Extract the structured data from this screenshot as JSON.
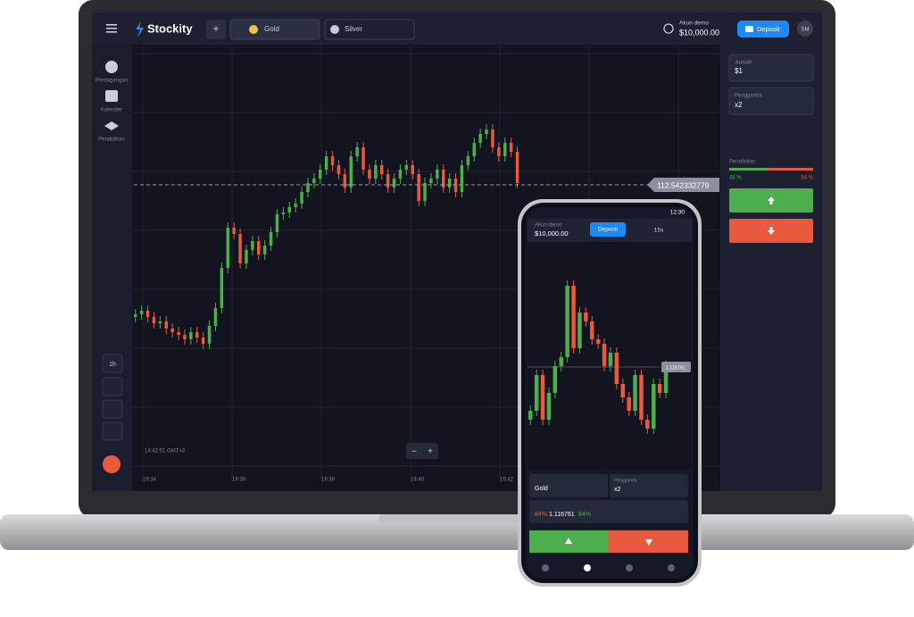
{
  "header": {
    "logo": "Stockity",
    "tabs": [
      "Gold",
      "Silver"
    ],
    "account_label": "Akun demo",
    "balance": "$10,000.00",
    "deposit": "Deposit",
    "avatar": "SM"
  },
  "sidebar": [
    "Perdagangan",
    "Kalender",
    "Pendidikan"
  ],
  "tools": {
    "timeframe": "1h"
  },
  "chart": {
    "current_price": "112.542332779",
    "time": "14:42:51 GMT+3",
    "xticks": [
      "19:34",
      "19:36",
      "19:38",
      "19:40",
      "19:42"
    ]
  },
  "panel": {
    "amount_label": "Jumlah",
    "amount": "$1",
    "multiplier_label": "Pengganda",
    "multiplier": "x2",
    "sentiment_label": "Pendikikan",
    "sentiment_up": "46 %",
    "sentiment_down": "54 %"
  },
  "phone": {
    "clock": "12:30",
    "account_label": "Akun demo",
    "balance": "$10,000.00",
    "deposit": "Deposit",
    "period": "15s",
    "current_price": "1.116761",
    "asset": "Gold",
    "multiplier_label": "Pengganda",
    "multiplier": "x2",
    "payout_left": "84%",
    "payout_price": "1.116761",
    "payout_right": "84%"
  }
}
